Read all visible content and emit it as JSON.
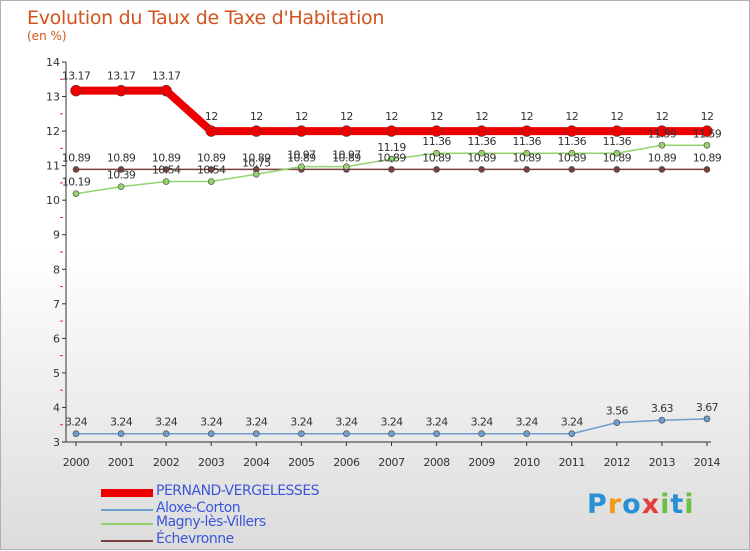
{
  "title": "Evolution du Taux de Taxe d'Habitation",
  "subtitle": "(en %)",
  "brand": {
    "letters": [
      "P",
      "r",
      "o",
      "x",
      "i",
      "t",
      "i"
    ],
    "colors": [
      "#2a8fd6",
      "#f39a1e",
      "#2a8fd6",
      "#e23d3d",
      "#6cc04a",
      "#2a8fd6",
      "#6cc04a"
    ]
  },
  "chart_data": {
    "type": "line",
    "x": [
      "2000",
      "2001",
      "2002",
      "2003",
      "2004",
      "2005",
      "2006",
      "2007",
      "2008",
      "2009",
      "2010",
      "2011",
      "2012",
      "2013",
      "2014"
    ],
    "ylim": [
      3,
      14
    ],
    "yticks": [
      "3",
      "4",
      "5",
      "6",
      "7",
      "8",
      "9",
      "10",
      "11",
      "12",
      "13",
      "14"
    ],
    "grid": false,
    "legend": "bottom-left",
    "series": [
      {
        "name": "PERNAND-VERGELESSES",
        "color": "#ee0000",
        "values": [
          13.17,
          13.17,
          13.17,
          12,
          12,
          12,
          12,
          12,
          12,
          12,
          12,
          12,
          12,
          12,
          12
        ],
        "labels": [
          "13.17",
          "13.17",
          "13.17",
          "12",
          "12",
          "12",
          "12",
          "12",
          "12",
          "12",
          "12",
          "12",
          "12",
          "12",
          "12"
        ]
      },
      {
        "name": "Aloxe-Corton",
        "color": "#6e9ecf",
        "values": [
          3.24,
          3.24,
          3.24,
          3.24,
          3.24,
          3.24,
          3.24,
          3.24,
          3.24,
          3.24,
          3.24,
          3.24,
          3.56,
          3.63,
          3.67
        ],
        "labels": [
          "3.24",
          "3.24",
          "3.24",
          "3.24",
          "3.24",
          "3.24",
          "3.24",
          "3.24",
          "3.24",
          "3.24",
          "3.24",
          "3.24",
          "3.56",
          "3.63",
          "3.67"
        ]
      },
      {
        "name": "Magny-lès-Villers",
        "color": "#92d36e",
        "values": [
          10.19,
          10.39,
          10.54,
          10.54,
          10.75,
          10.97,
          10.97,
          11.19,
          11.36,
          11.36,
          11.36,
          11.36,
          11.36,
          11.59,
          11.59
        ],
        "labels": [
          "10.19",
          "10.39",
          "10.54",
          "10.54",
          "10.75",
          "10.97",
          "10.97",
          "11.19",
          "11.36",
          "11.36",
          "11.36",
          "11.36",
          "11.36",
          "11.59",
          "11.59"
        ]
      },
      {
        "name": "Échevronne",
        "color": "#7b3f3f",
        "values": [
          10.89,
          10.89,
          10.89,
          10.89,
          10.89,
          10.89,
          10.89,
          10.89,
          10.89,
          10.89,
          10.89,
          10.89,
          10.89,
          10.89,
          10.89
        ],
        "labels": [
          "10.89",
          "10.89",
          "10.89",
          "10.89",
          "10.89",
          "10.89",
          "10.89",
          "10.89",
          "10.89",
          "10.89",
          "10.89",
          "10.89",
          "10.89",
          "10.89",
          "10.89"
        ]
      }
    ]
  }
}
